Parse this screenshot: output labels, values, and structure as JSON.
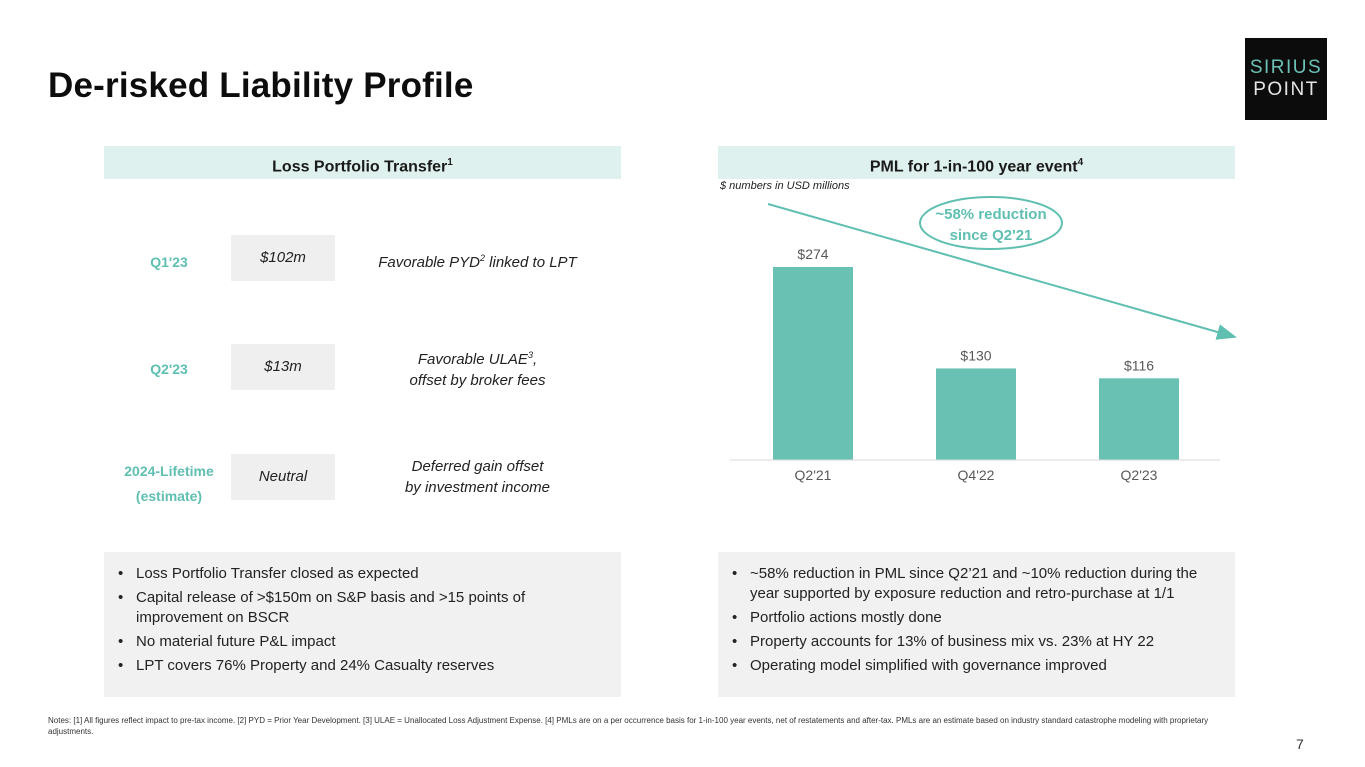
{
  "slide": {
    "title": "De-risked Liability Profile",
    "page_number": "7",
    "logo": {
      "line1": "SIRIUS",
      "line2": "POINT"
    }
  },
  "lpt": {
    "header": "Loss Portfolio Transfer",
    "header_sup": "1",
    "rows": [
      {
        "label": "Q1'23",
        "label2": "",
        "value": "$102m",
        "desc1_pre": "Favorable PYD",
        "desc1_sup": "2",
        "desc1_post": " linked to LPT",
        "desc2": ""
      },
      {
        "label": "Q2'23",
        "label2": "",
        "value": "$13m",
        "desc1_pre": "Favorable ULAE",
        "desc1_sup": "3",
        "desc1_post": ",",
        "desc2": "offset by broker fees"
      },
      {
        "label": "2024-Lifetime",
        "label2": "(estimate)",
        "value": "Neutral",
        "desc1_pre": "Deferred gain offset",
        "desc1_sup": "",
        "desc1_post": "",
        "desc2": "by investment income"
      }
    ],
    "bullets": [
      "Loss Portfolio Transfer closed as expected",
      "Capital release of >$150m on S&P basis and >15 points of improvement on BSCR",
      "No material future P&L impact",
      "LPT covers 76% Property and 24% Casualty reserves"
    ]
  },
  "pml": {
    "header": "PML for 1-in-100 year event",
    "header_sup": "4",
    "units_note": "$ numbers in USD millions",
    "callout_line1": "~58% reduction",
    "callout_line2": "since Q2'21",
    "bullets": [
      "~58% reduction in PML since Q2’21 and ~10% reduction during the year supported by exposure reduction and retro-purchase at 1/1",
      "Portfolio actions mostly done",
      "Property accounts for 13% of business mix vs. 23% at HY 22",
      "Operating model simplified with governance improved"
    ]
  },
  "chart_data": {
    "type": "bar",
    "categories": [
      "Q2'21",
      "Q4'22",
      "Q2'23"
    ],
    "values": [
      274,
      130,
      116
    ],
    "value_labels": [
      "$274",
      "$130",
      "$116"
    ],
    "title": "PML for 1-in-100 year event",
    "xlabel": "",
    "ylabel": "",
    "ylim": [
      0,
      274
    ],
    "bar_color": "#69c1b4",
    "trend_color": "#5fbfb1"
  },
  "footnote": "Notes: [1] All figures reflect impact to pre-tax income. [2] PYD = Prior Year Development. [3] ULAE = Unallocated Loss Adjustment Expense. [4] PMLs are on a per occurrence basis for 1-in-100 year events, net of restatements and after-tax. PMLs are an estimate based on industry standard catastrophe modeling with proprietary adjustments."
}
